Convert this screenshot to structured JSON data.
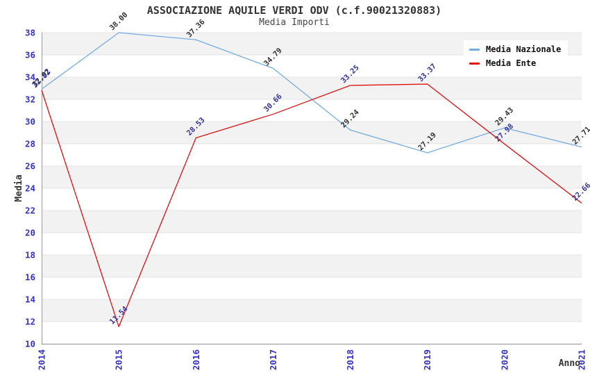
{
  "chart_data": {
    "type": "line",
    "title": "ASSOCIAZIONE AQUILE VERDI ODV (c.f.90021320883)",
    "subtitle": "Media Importi",
    "xlabel": "Anno",
    "ylabel": "Media",
    "categories": [
      "2014",
      "2015",
      "2016",
      "2017",
      "2018",
      "2019",
      "2020",
      "2021"
    ],
    "yticks": [
      38,
      36,
      34,
      32,
      30,
      28,
      26,
      24,
      22,
      20,
      18,
      16,
      14,
      12,
      10
    ],
    "ylim": [
      10,
      38
    ],
    "grid": "horizontal-bands",
    "legend_position": "top-right",
    "series": [
      {
        "name": "Media Nazionale",
        "color": "#74ace2",
        "label_color": "#333333",
        "values": [
          32.92,
          38.0,
          37.36,
          34.79,
          29.24,
          27.19,
          29.43,
          27.71
        ]
      },
      {
        "name": "Media Ente",
        "color": "#dd1111",
        "label_color": "#333399",
        "values": [
          32.82,
          11.54,
          28.53,
          30.66,
          33.25,
          33.37,
          27.98,
          22.66
        ]
      }
    ],
    "colors": {
      "tick_label": "#3232c8",
      "band": "#f2f2f2",
      "grid_line": "#e3e3e3",
      "spine": "#999999",
      "title": "#333333",
      "legend_bg": "#ffffff"
    }
  }
}
